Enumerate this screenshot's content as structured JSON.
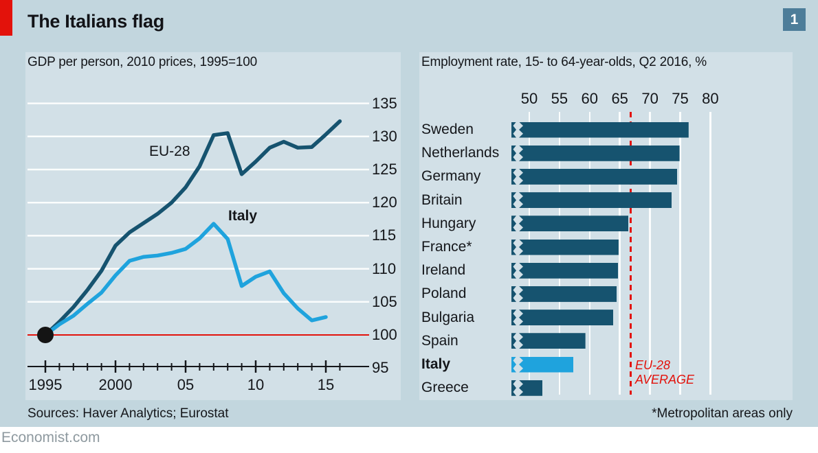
{
  "header": {
    "title": "The Italians flag",
    "figure_number": "1"
  },
  "colors": {
    "accent_red": "#e3120b",
    "dark_series": "#16536f",
    "light_series": "#1fa3dd",
    "badge_blue": "#4d7d99",
    "card_bg": "#c2d6de",
    "panel_bg": "#d2e0e7",
    "gridline": "#fbfdfd",
    "text_dark": "#14161a",
    "axis_dark": "#14161a",
    "dot_black": "#141414"
  },
  "chart_data": [
    {
      "type": "line",
      "title": "GDP per person, 2010 prices, 1995=100",
      "series": [
        {
          "name": "EU-28",
          "color": "#16536f",
          "x": [
            1995,
            1996,
            1997,
            1998,
            1999,
            2000,
            2001,
            2002,
            2003,
            2004,
            2005,
            2006,
            2007,
            2008,
            2009,
            2010,
            2011,
            2012,
            2013,
            2014,
            2015,
            2016
          ],
          "values": [
            100,
            102,
            104.2,
            106.8,
            109.7,
            113.5,
            115.5,
            116.9,
            118.3,
            120,
            122.3,
            125.5,
            130.2,
            130.5,
            124.3,
            126.2,
            128.3,
            129.2,
            128.3,
            128.4,
            130.3,
            132.3
          ]
        },
        {
          "name": "Italy",
          "color": "#1fa3dd",
          "x": [
            1995,
            1996,
            1997,
            1998,
            1999,
            2000,
            2001,
            2002,
            2003,
            2004,
            2005,
            2006,
            2007,
            2008,
            2009,
            2010,
            2011,
            2012,
            2013,
            2014,
            2015
          ],
          "values": [
            100,
            101.6,
            102.9,
            104.7,
            106.4,
            109,
            111.2,
            111.8,
            112,
            112.4,
            113,
            114.6,
            116.8,
            114.5,
            107.4,
            108.8,
            109.6,
            106.3,
            104,
            102.2,
            102.7
          ]
        }
      ],
      "ylim": [
        95,
        135
      ],
      "yticks": [
        95,
        100,
        105,
        110,
        115,
        120,
        125,
        130,
        135
      ],
      "xticks": [
        {
          "year": 1995,
          "label": "1995"
        },
        {
          "year": 2000,
          "label": "2000"
        },
        {
          "year": 2005,
          "label": "05"
        },
        {
          "year": 2010,
          "label": "10"
        },
        {
          "year": 2015,
          "label": "15"
        }
      ],
      "tick_years_start": 1995,
      "tick_years_end": 2016,
      "baseline": {
        "value": 100,
        "color": "#e3120b"
      },
      "start_dot": {
        "year": 1995,
        "value": 100
      },
      "grid": true
    },
    {
      "type": "bar",
      "title": "Employment rate, 15- to 64-year-olds, Q2 2016, %",
      "categories": [
        "Sweden",
        "Netherlands",
        "Germany",
        "Britain",
        "Hungary",
        "France*",
        "Ireland",
        "Poland",
        "Bulgaria",
        "Spain",
        "Italy",
        "Greece"
      ],
      "values": [
        76.4,
        74.9,
        74.5,
        73.6,
        66.4,
        64.8,
        64.7,
        64.5,
        63.9,
        59.3,
        57.3,
        52.2
      ],
      "bar_color": "#16536f",
      "highlight": {
        "category": "Italy",
        "color": "#1fa3dd"
      },
      "xticks": [
        50,
        55,
        60,
        65,
        70,
        75,
        80
      ],
      "xlim": [
        46.5,
        82
      ],
      "average": {
        "value": 66.8,
        "label_line1": "EU-28",
        "label_line2": "AVERAGE",
        "color": "#e3120b"
      },
      "axis_truncated": true,
      "grid": true
    }
  ],
  "footer": {
    "sources": "Sources: Haver Analytics; Eurostat",
    "footnote": "*Metropolitan areas only",
    "site": "Economist.com"
  }
}
